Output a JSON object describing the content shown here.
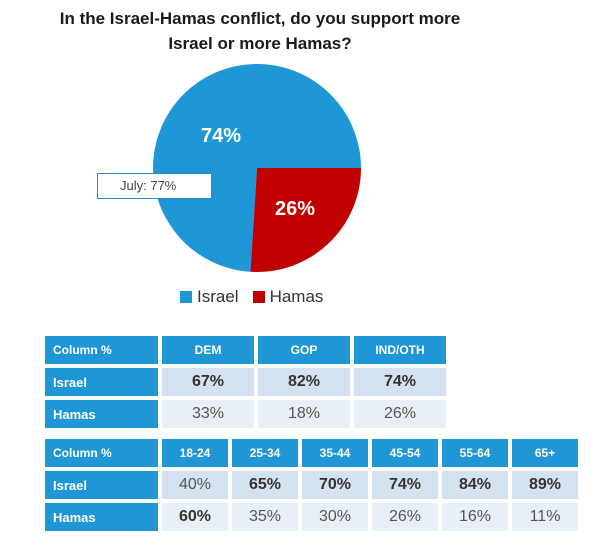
{
  "title_line1": "In the Israel-Hamas conflict, do you support more",
  "title_line2": "Israel or more Hamas?",
  "chart_data": {
    "type": "pie",
    "slices": [
      {
        "name": "Israel",
        "value": 74,
        "label": "74%",
        "color": "#1f97d6"
      },
      {
        "name": "Hamas",
        "value": 26,
        "label": "26%",
        "color": "#c00000"
      }
    ],
    "annotation": "July: 77%",
    "legend": [
      "Israel",
      "Hamas"
    ]
  },
  "table_party": {
    "header": [
      "Column %",
      "DEM",
      "GOP",
      "IND/OTH"
    ],
    "rows": [
      {
        "label": "Israel",
        "values": [
          "67%",
          "82%",
          "74%"
        ]
      },
      {
        "label": "Hamas",
        "values": [
          "33%",
          "18%",
          "26%"
        ]
      }
    ]
  },
  "table_age": {
    "header": [
      "Column %",
      "18-24",
      "25-34",
      "35-44",
      "45-54",
      "55-64",
      "65+"
    ],
    "rows": [
      {
        "label": "Israel",
        "values": [
          "40%",
          "65%",
          "70%",
          "74%",
          "84%",
          "89%"
        ]
      },
      {
        "label": "Hamas",
        "values": [
          "60%",
          "35%",
          "30%",
          "26%",
          "16%",
          "11%"
        ]
      }
    ]
  }
}
